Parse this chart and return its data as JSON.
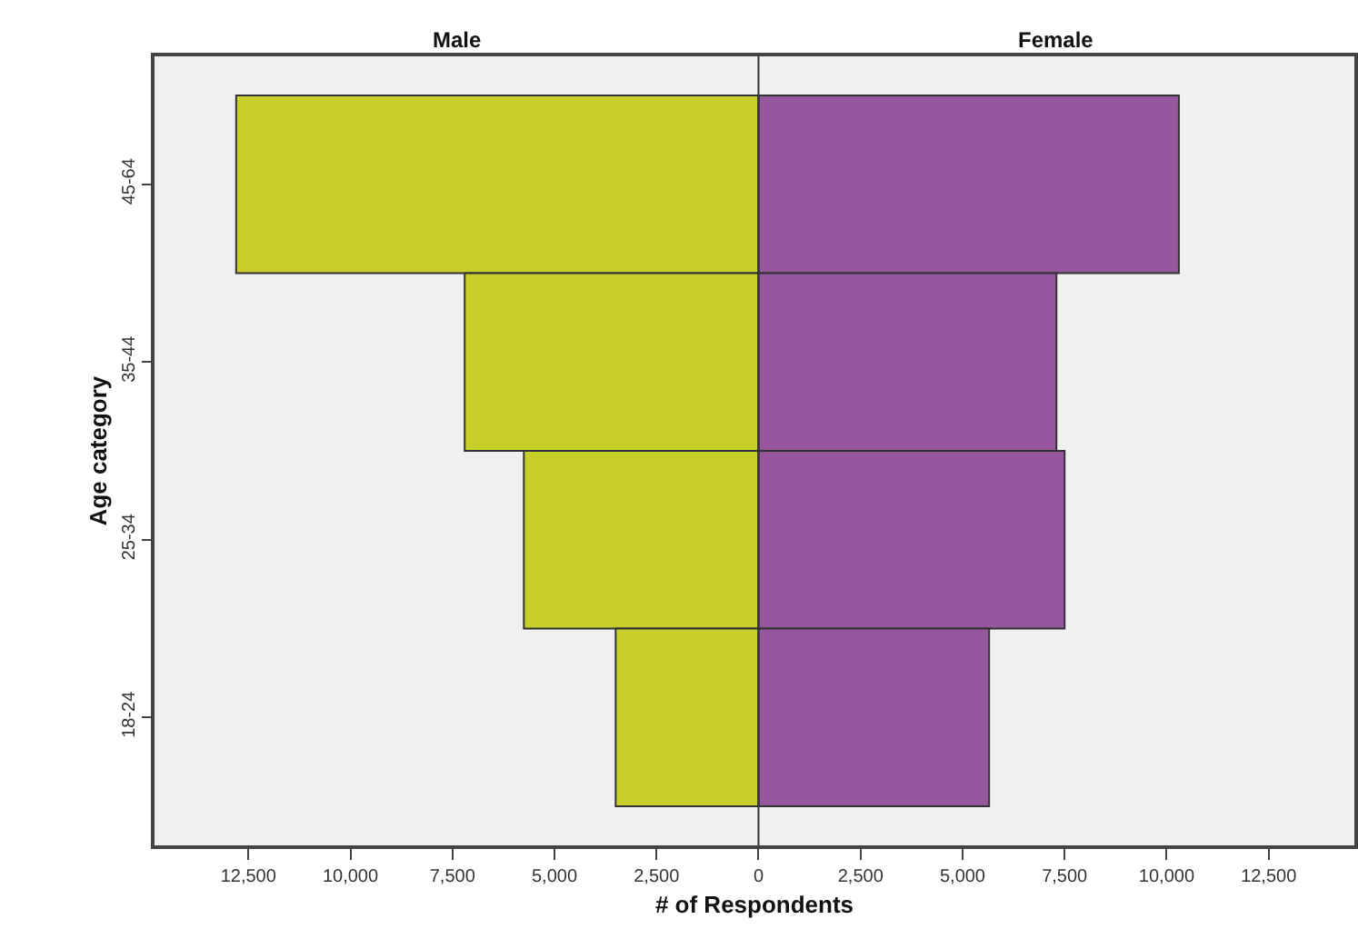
{
  "chart_data": {
    "type": "bar",
    "orientation": "horizontal",
    "categories": [
      "45-64",
      "35-44",
      "25-34",
      "18-24"
    ],
    "series": [
      {
        "name": "Male",
        "color": "#c8cf2a",
        "values": [
          -12800,
          -7200,
          -5750,
          -3500
        ]
      },
      {
        "name": "Female",
        "color": "#96579e",
        "values": [
          10300,
          7300,
          7500,
          5650
        ]
      }
    ],
    "xlabel": "# of Respondents",
    "ylabel": "Age category",
    "xlim": [
      -14800,
      14600
    ],
    "xticks": [
      {
        "value": -12500,
        "label": "12,500"
      },
      {
        "value": -10000,
        "label": "10,000"
      },
      {
        "value": -7500,
        "label": "7,500"
      },
      {
        "value": -5000,
        "label": "5,000"
      },
      {
        "value": -2500,
        "label": "2,500"
      },
      0,
      {
        "value": 2500,
        "label": "2,500"
      },
      {
        "value": 5000,
        "label": "5,000"
      },
      {
        "value": 7500,
        "label": "7,500"
      },
      {
        "value": 10000,
        "label": "10,000"
      },
      {
        "value": 12500,
        "label": "12,500"
      }
    ],
    "ref_lines": [
      {
        "axis": "x",
        "value": 0
      }
    ],
    "stacked": true,
    "grid": false,
    "legend": false
  }
}
